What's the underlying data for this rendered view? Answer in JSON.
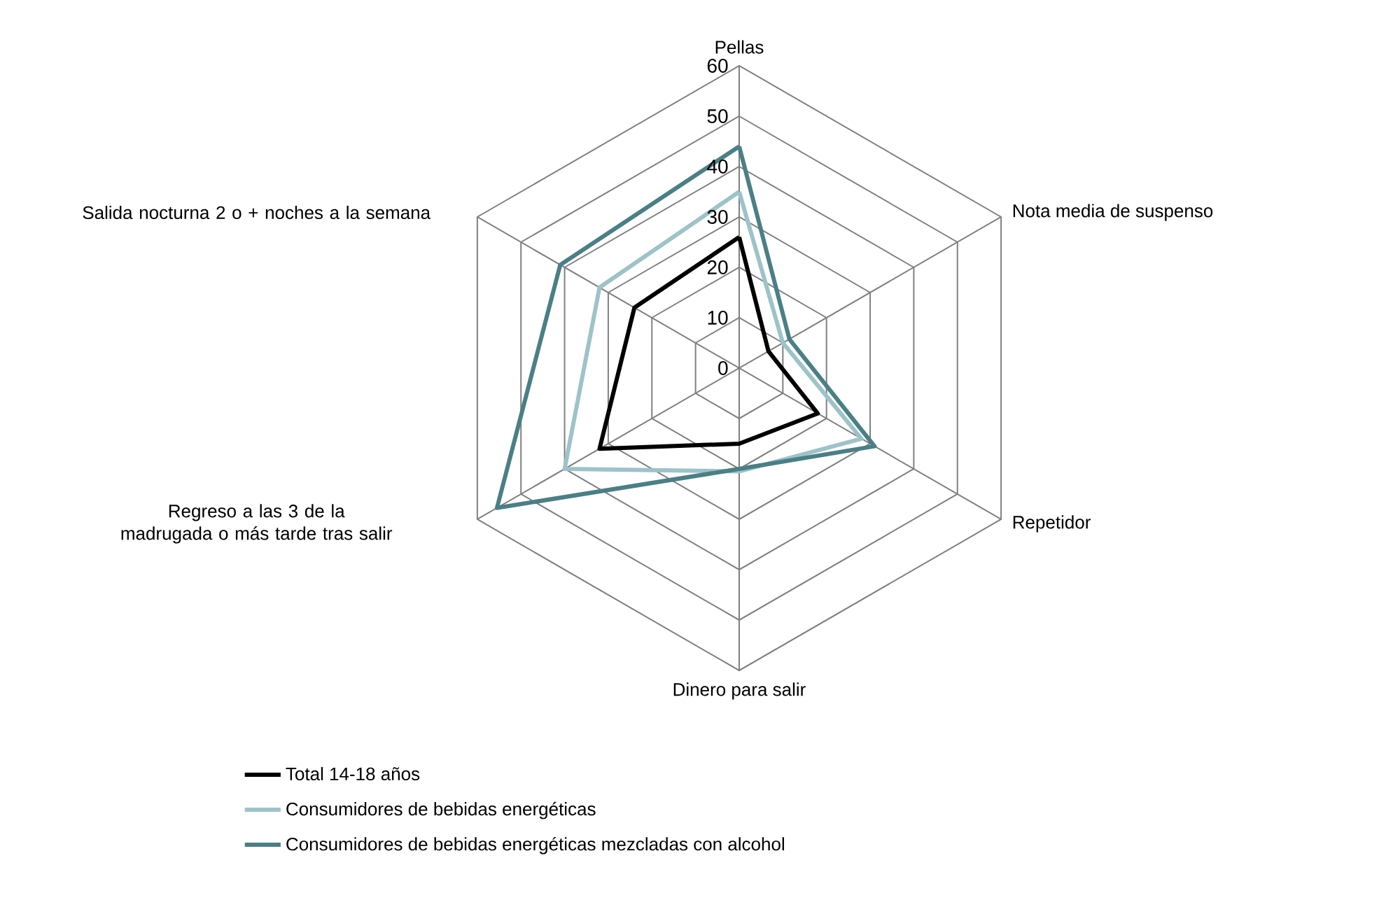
{
  "chart_data": {
    "type": "radar",
    "categories": [
      "Pellas",
      "Nota media de suspenso",
      "Repetidor",
      "Dinero para salir",
      "Regreso a las 3 de la madrugada o más tarde tras salir",
      "Salida nocturna 2 o + noches a la semana"
    ],
    "series": [
      {
        "name": "Total 14-18 años",
        "color": "#000000",
        "values": [
          26,
          6.7,
          18,
          15,
          32,
          24
        ]
      },
      {
        "name": "Consumidores de bebidas energéticas",
        "color": "#9dc3c9",
        "values": [
          35,
          10,
          28,
          20.5,
          40,
          32
        ]
      },
      {
        "name": "Consumidores de bebidas energéticas mezcladas con alcohol",
        "color": "#4a7f86",
        "values": [
          44,
          11.5,
          31,
          20,
          55.5,
          41
        ]
      }
    ],
    "ylim": [
      0,
      60
    ],
    "yticks": [
      0,
      10,
      20,
      30,
      40,
      50,
      60
    ],
    "grid": true,
    "legend": "bottom"
  }
}
